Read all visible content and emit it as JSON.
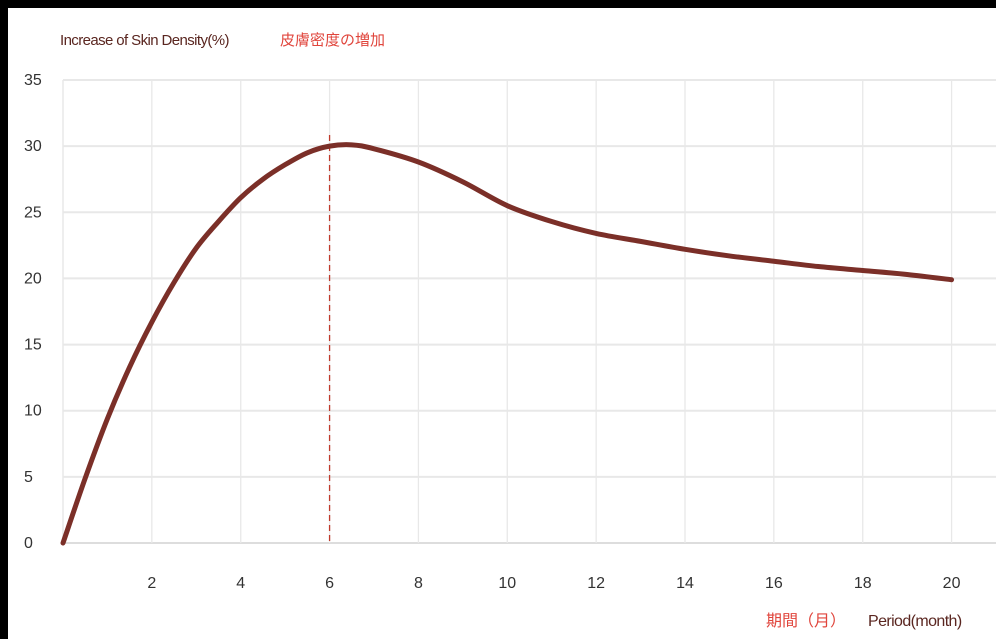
{
  "chart_data": {
    "type": "line",
    "title": "Increase of Skin Density(%)",
    "title_jp": "皮膚密度の増加",
    "xlabel": "Period(month)",
    "xlabel_jp": "期間（月）",
    "x_ticks": [
      "2",
      "4",
      "6",
      "8",
      "10",
      "12",
      "14",
      "16",
      "18",
      "20"
    ],
    "y_ticks": [
      "0",
      "5",
      "10",
      "15",
      "20",
      "25",
      "30",
      "35"
    ],
    "xlim": [
      0,
      21
    ],
    "ylim": [
      0,
      35
    ],
    "grid": true,
    "reference_line_x": 6,
    "series": [
      {
        "x": [
          0,
          0.5,
          1,
          1.5,
          2,
          2.5,
          3,
          3.5,
          4,
          4.5,
          5,
          5.5,
          6,
          6.5,
          7,
          8,
          9,
          10,
          11,
          12,
          13,
          14,
          15,
          16,
          17,
          18,
          19,
          20
        ],
        "values": [
          0,
          4.9,
          9.4,
          13.3,
          16.7,
          19.7,
          22.3,
          24.3,
          26.1,
          27.5,
          28.6,
          29.5,
          30.0,
          30.1,
          29.8,
          28.8,
          27.3,
          25.5,
          24.3,
          23.4,
          22.8,
          22.2,
          21.7,
          21.3,
          20.9,
          20.6,
          20.3,
          19.9
        ]
      }
    ],
    "colors": {
      "line": "#7b2f28",
      "reference_line": "#c0392b",
      "grid": "#e8e8e8",
      "axis_title_en": "#5a2620",
      "axis_title_jp": "#e0453c"
    }
  }
}
